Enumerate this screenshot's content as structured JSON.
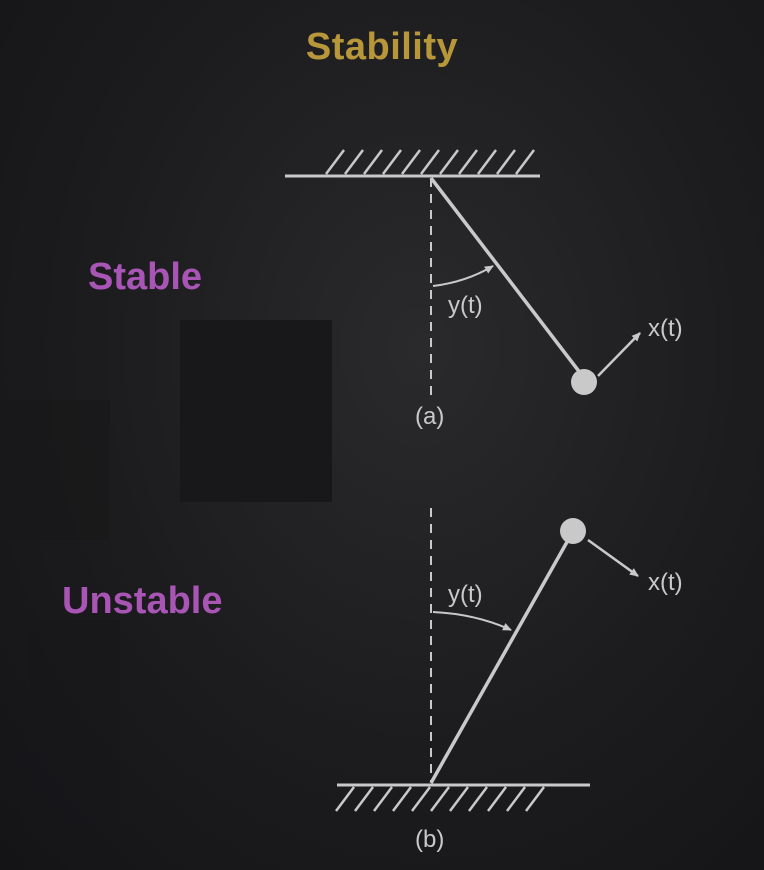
{
  "title": "Stability",
  "labels": {
    "stable": "Stable",
    "unstable": "Unstable"
  },
  "figures": {
    "a": {
      "caption": "(a)",
      "angle_label": "y(t)",
      "input_label": "x(t)"
    },
    "b": {
      "caption": "(b)",
      "angle_label": "y(t)",
      "input_label": "x(t)"
    }
  },
  "colors": {
    "background": "#1c1c1e",
    "title": "#b8973a",
    "side_labels": "#a855b5",
    "drawing": "#c9c9c9"
  }
}
